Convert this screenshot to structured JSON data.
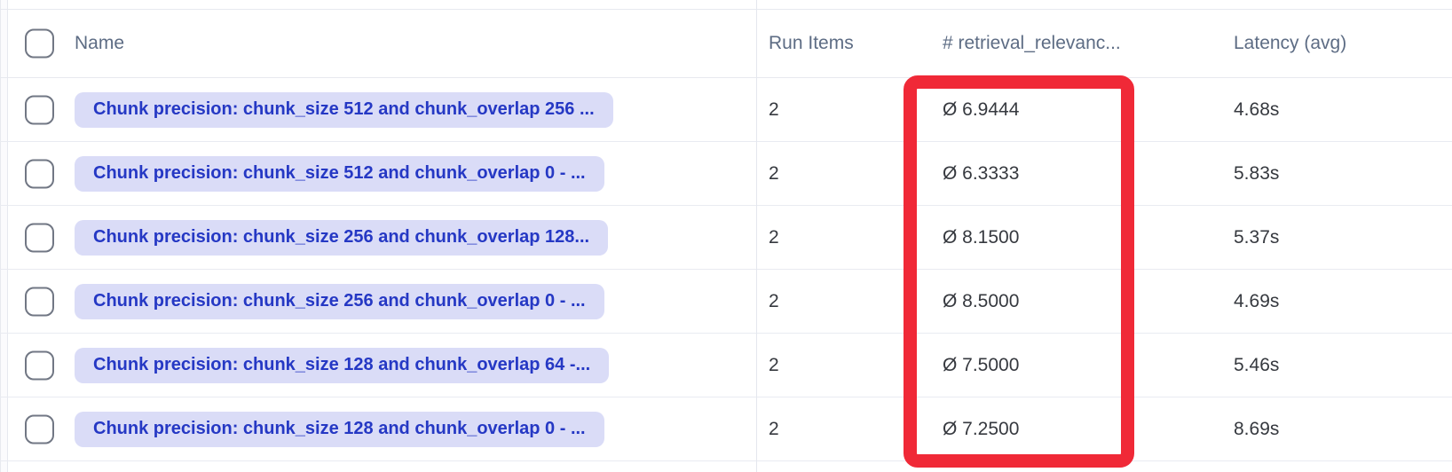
{
  "table": {
    "columns": [
      {
        "id": "name",
        "label": "Name"
      },
      {
        "id": "run_items",
        "label": "Run Items"
      },
      {
        "id": "score",
        "label": "# retrieval_relevanc..."
      },
      {
        "id": "latency",
        "label": "Latency (avg)"
      }
    ],
    "rows": [
      {
        "name": "Chunk precision: chunk_size 512 and chunk_overlap 256 ...",
        "run_items": "2",
        "score": "Ø 6.9444",
        "latency": "4.68s"
      },
      {
        "name": "Chunk precision: chunk_size 512 and chunk_overlap 0 - ...",
        "run_items": "2",
        "score": "Ø 6.3333",
        "latency": "5.83s"
      },
      {
        "name": "Chunk precision: chunk_size 256 and chunk_overlap 128...",
        "run_items": "2",
        "score": "Ø 8.1500",
        "latency": "5.37s"
      },
      {
        "name": "Chunk precision: chunk_size 256 and chunk_overlap 0 - ...",
        "run_items": "2",
        "score": "Ø 8.5000",
        "latency": "4.69s"
      },
      {
        "name": "Chunk precision: chunk_size 128 and chunk_overlap 64 -...",
        "run_items": "2",
        "score": "Ø 7.5000",
        "latency": "5.46s"
      },
      {
        "name": "Chunk precision: chunk_size 128 and chunk_overlap 0 - ...",
        "run_items": "2",
        "score": "Ø 7.2500",
        "latency": "8.69s"
      }
    ]
  },
  "annotation": {
    "shape": "rectangle",
    "color": "#f02937",
    "highlighted_column": "# retrieval_relevanc..."
  },
  "colors": {
    "pill_background": "#dadcf7",
    "pill_text": "#2538c4",
    "header_text": "#5d6c84",
    "cell_text": "#36393f",
    "row_border": "#e9ebf1",
    "checkbox_border": "#717784"
  }
}
